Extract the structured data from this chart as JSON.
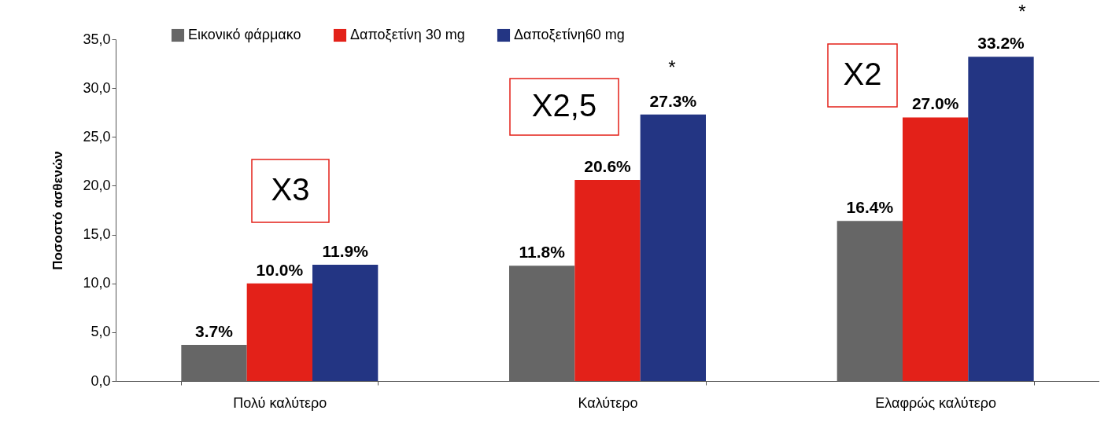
{
  "chart_data": {
    "type": "bar",
    "ylabel": "Ποσοστό ασθενών",
    "categories": [
      "Πολύ καλύτερο",
      "Καλύτερο",
      "Ελαφρώς καλύτερο"
    ],
    "series": [
      {
        "name": "Εικονικό φάρμακο",
        "color": "#666666",
        "values": [
          3.7,
          11.8,
          16.4
        ],
        "value_labels": [
          "3.7%",
          "11.8%",
          "16.4%"
        ]
      },
      {
        "name": "Δαποξετίνη 30 mg",
        "color": "#e32119",
        "values": [
          10.0,
          20.6,
          27.0
        ],
        "value_labels": [
          "10.0%",
          "20.6%",
          "27.0%"
        ]
      },
      {
        "name": "Δαποξετίνη60 mg",
        "color": "#233583",
        "values": [
          11.9,
          27.3,
          33.2
        ],
        "value_labels": [
          "11.9%",
          "27.3%",
          "33.2%"
        ]
      }
    ],
    "ylim": [
      0,
      35
    ],
    "yticks": [
      {
        "value": 0,
        "label": "0,0"
      },
      {
        "value": 5,
        "label": "5,0"
      },
      {
        "value": 10,
        "label": "10,0"
      },
      {
        "value": 15,
        "label": "15,0"
      },
      {
        "value": 20,
        "label": "20,0"
      },
      {
        "value": 25,
        "label": "25,0"
      },
      {
        "value": 30,
        "label": "30,0"
      },
      {
        "value": 35,
        "label": "35,0"
      }
    ],
    "grid": false,
    "legend": "top",
    "annotations": [
      "X3",
      "X2,5",
      "X2",
      "*",
      "*"
    ]
  }
}
